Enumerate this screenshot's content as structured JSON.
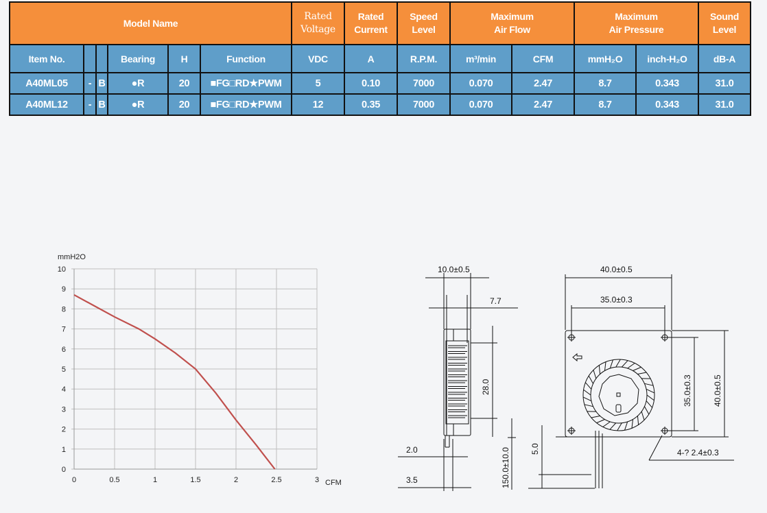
{
  "table": {
    "header": {
      "model_name": "Model Name",
      "rated_voltage": "Rated\nVoltage",
      "rated_current": "Rated\nCurrent",
      "speed_level": "Speed\nLevel",
      "max_air_flow": "Maximum\nAir Flow",
      "max_air_pressure": "Maximum\nAir Pressure",
      "sound_level": "Sound\nLevel"
    },
    "subheader": {
      "item_no": "Item No.",
      "blank1": "",
      "blank2": "",
      "bearing": "Bearing",
      "h": "H",
      "function": "Function",
      "vdc": "VDC",
      "a": "A",
      "rpm": "R.P.M.",
      "m3min": "m³/min",
      "cfm": "CFM",
      "mmh2o": "mmH₂O",
      "inchh2o": "inch-H₂O",
      "dba": "dB-A"
    },
    "rows": [
      {
        "item": "A40ML05",
        "dash": "-",
        "b": "B",
        "bearing": "●R",
        "h": "20",
        "function": "■FG□RD★PWM",
        "vdc": "5",
        "a": "0.10",
        "rpm": "7000",
        "m3": "0.070",
        "cfm": "2.47",
        "mm": "8.7",
        "inch": "0.343",
        "db": "31.0"
      },
      {
        "item": "A40ML12",
        "dash": "-",
        "b": "B",
        "bearing": "●R",
        "h": "20",
        "function": "■FG□RD★PWM",
        "vdc": "12",
        "a": "0.35",
        "rpm": "7000",
        "m3": "0.070",
        "cfm": "2.47",
        "mm": "8.7",
        "inch": "0.343",
        "db": "31.0"
      }
    ],
    "colors": {
      "header": "#f58f3b",
      "body": "#5f9ec9",
      "border": "#111111"
    }
  },
  "chart_data": {
    "type": "line",
    "xlabel": "CFM",
    "ylabel": "mmH2O",
    "xlim": [
      0,
      3
    ],
    "ylim": [
      0,
      10
    ],
    "xticks": [
      "0",
      "0.5",
      "1",
      "1.5",
      "2",
      "2.5",
      "3"
    ],
    "yticks": [
      "0",
      "1",
      "2",
      "3",
      "4",
      "5",
      "6",
      "7",
      "8",
      "9",
      "10"
    ],
    "grid": true,
    "series": [
      {
        "color": "#c0504d",
        "x": [
          0,
          0.25,
          0.5,
          0.8,
          1.0,
          1.25,
          1.5,
          1.75,
          2.0,
          2.25,
          2.48
        ],
        "y": [
          8.7,
          8.15,
          7.6,
          7.0,
          6.5,
          5.8,
          5.0,
          3.8,
          2.45,
          1.2,
          0
        ]
      }
    ]
  },
  "drawing": {
    "side": {
      "width": "10.0±0.5",
      "inner": "7.7",
      "height": "28.0",
      "cable": "150.0±10.0",
      "d1": "2.0",
      "d2": "3.5"
    },
    "front": {
      "width": "40.0±0.5",
      "hole_pitch": "35.0±0.3",
      "v_pitch": "35.0±0.3",
      "v_height": "40.0±0.5",
      "holes": "4-? 2.4±0.3",
      "offset": "5.0"
    }
  }
}
